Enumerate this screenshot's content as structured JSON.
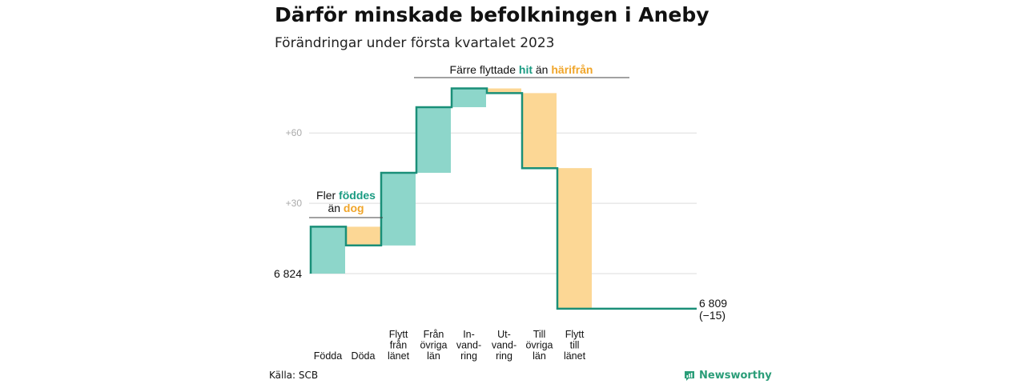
{
  "title": "Därför minskade befolkningen i Aneby",
  "subtitle": "Förändringar under första kvartalet 2023",
  "source": "Källa: SCB",
  "brand": "Newsworthy",
  "colors": {
    "increase": "#8dd6ca",
    "decrease": "#fcd795",
    "line": "#1a8f78",
    "accent_teal": "#1a9b82",
    "accent_orange": "#f0a52a",
    "grid": "#dddddd",
    "tick": "#aaaaaa"
  },
  "annotations": {
    "births": {
      "pre1": "Fler ",
      "hl1": "föddes",
      "pre2": "än ",
      "hl2": "dog"
    },
    "moves": {
      "pre1": "Färre flyttade ",
      "hl1": "hit",
      "mid": " än ",
      "hl2": "härifrån"
    }
  },
  "chart_data": {
    "type": "waterfall",
    "title": "Därför minskade befolkningen i Aneby",
    "subtitle": "Förändringar under första kvartalet 2023",
    "start": {
      "value": 6824,
      "label": "6 824"
    },
    "end": {
      "value": 6809,
      "label": "6 809",
      "change_label": "(−15)"
    },
    "y_ticks": [
      {
        "offset": 30,
        "label": "+30"
      },
      {
        "offset": 60,
        "label": "+60"
      }
    ],
    "ylim_offset": [
      -15,
      80
    ],
    "grid": true,
    "steps": [
      {
        "label": [
          "Födda"
        ],
        "change": 20,
        "kind": "increase"
      },
      {
        "label": [
          "Döda"
        ],
        "change": -8,
        "kind": "decrease"
      },
      {
        "label": [
          "Flytt",
          "från",
          "länet"
        ],
        "change": 31,
        "kind": "increase"
      },
      {
        "label": [
          "Från",
          "övriga",
          "län"
        ],
        "change": 28,
        "kind": "increase"
      },
      {
        "label": [
          "In-",
          "vand-",
          "ring"
        ],
        "change": 8,
        "kind": "increase"
      },
      {
        "label": [
          "Ut-",
          "vand-",
          "ring"
        ],
        "change": -2,
        "kind": "decrease"
      },
      {
        "label": [
          "Till",
          "övriga",
          "län"
        ],
        "change": -32,
        "kind": "decrease"
      },
      {
        "label": [
          "Flytt",
          "till",
          "länet"
        ],
        "change": -60,
        "kind": "decrease"
      }
    ]
  }
}
